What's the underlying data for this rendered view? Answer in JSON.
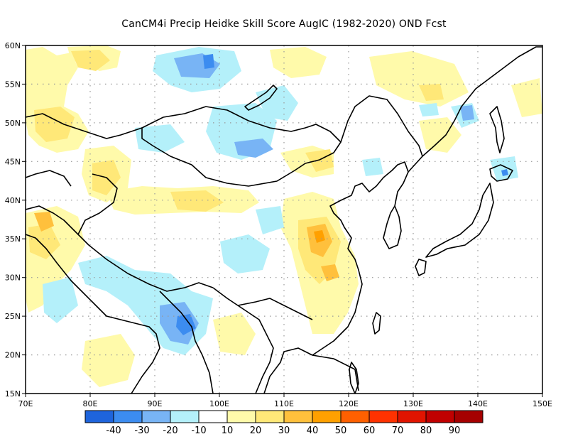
{
  "title": "CanCM4i Precip Heidke Skill Score AugIC (1982-2020) OND Fcst",
  "axes": {
    "lon_labels": [
      "70E",
      "80E",
      "90E",
      "100E",
      "110E",
      "120E",
      "130E",
      "140E",
      "150E"
    ],
    "lat_labels": [
      "15N",
      "20N",
      "25N",
      "30N",
      "35N",
      "40N",
      "45N",
      "50N",
      "55N",
      "60N"
    ],
    "lon_range": [
      70,
      150
    ],
    "lat_range": [
      15,
      60
    ],
    "grid": "dotted"
  },
  "colorbar": {
    "labels": [
      "-40",
      "-30",
      "-20",
      "-10",
      "10",
      "20",
      "30",
      "40",
      "50",
      "60",
      "70",
      "80",
      "90"
    ],
    "colors": [
      "#1e64dc",
      "#3c8cf0",
      "#78b4f5",
      "#b4f0fa",
      "#ffffff",
      "#fffaaa",
      "#ffe878",
      "#ffc03c",
      "#ffa000",
      "#ff6000",
      "#ff3200",
      "#e11400",
      "#c00000",
      "#a50000"
    ]
  },
  "chart_data": {
    "type": "heatmap",
    "variable": "Heidke Skill Score",
    "lon_range": [
      70,
      150
    ],
    "lat_range": [
      15,
      60
    ],
    "levels": [
      -40,
      -30,
      -20,
      -10,
      10,
      20,
      30,
      40,
      50,
      60,
      70,
      80,
      90
    ],
    "notable_regions": [
      {
        "lon": 95,
        "lat": 23.5,
        "value": -30
      },
      {
        "lon": 96,
        "lat": 57.5,
        "value": -30
      },
      {
        "lon": 116,
        "lat": 34,
        "value": 40
      },
      {
        "lon": 117,
        "lat": 31,
        "value": 30
      },
      {
        "lon": 73,
        "lat": 48,
        "value": 30
      },
      {
        "lon": 75,
        "lat": 36,
        "value": 30
      },
      {
        "lon": 96,
        "lat": 40,
        "value": 20
      },
      {
        "lon": 111,
        "lat": 45,
        "value": 20
      },
      {
        "lon": 143,
        "lat": 43,
        "value": -20
      }
    ]
  }
}
